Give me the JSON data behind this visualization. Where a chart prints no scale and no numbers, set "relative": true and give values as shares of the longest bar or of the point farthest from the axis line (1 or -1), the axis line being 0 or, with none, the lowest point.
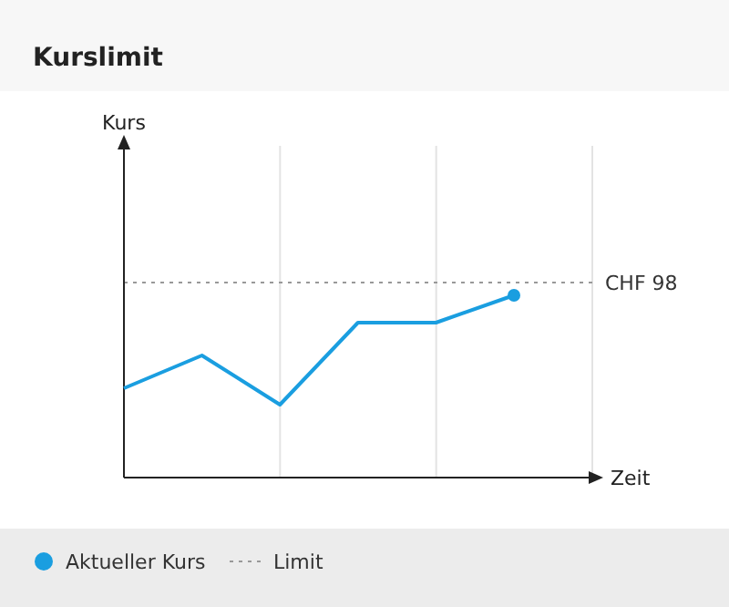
{
  "chart_data": {
    "type": "line",
    "title": "Kurslimit",
    "xlabel": "Zeit",
    "relative": true,
    "categories": [
      null,
      null,
      null,
      null,
      null,
      null
    ],
    "grid": "x",
    "legend": "bottom",
    "series": [
      {
        "name": "Aktueller Kurs",
        "color": "#1a9ee0",
        "values": [
          0.49,
          0.67,
          0.4,
          0.85,
          0.85,
          1
        ]
      }
    ],
    "ref_lines": [
      {
        "axis": "y",
        "value": 1.07,
        "label": "CHF 98",
        "color": "#999999",
        "line_style": "dotted"
      }
    ],
    "annotations": [
      "Limit",
      "Kurs"
    ]
  }
}
